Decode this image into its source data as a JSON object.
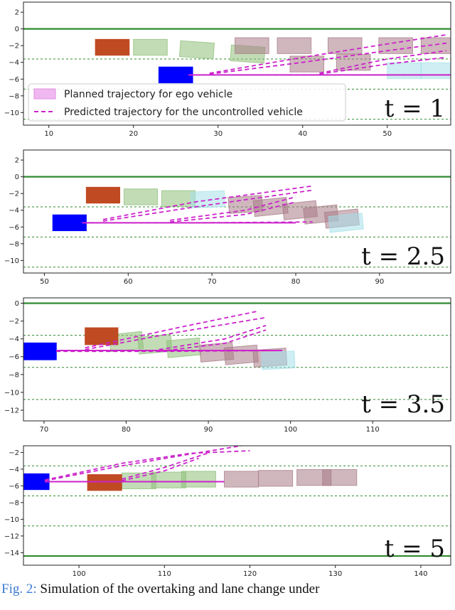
{
  "figure": {
    "legend": {
      "planned": "Planned trajectory for ego vehicle",
      "predicted": "Predicted trajectory for the uncontrolled vehicle"
    },
    "caption_label": "Fig. 2:",
    "caption_text": "Simulation of the overtaking and lane change under"
  },
  "colors": {
    "road": "#2e8b2e",
    "ego": "#0000ff",
    "other": "#c04a22",
    "traj": "#cc22cc",
    "green_box": "#8fbf7a",
    "mauve_box": "#a87b87"
  },
  "chart_data": [
    {
      "type": "scatter",
      "time_label": "t = 1",
      "xlim": [
        7,
        57.5
      ],
      "ylim": [
        -11.5,
        3.2
      ],
      "xticks": [
        10,
        20,
        30,
        40,
        50
      ],
      "yticks": [
        2,
        0,
        -2,
        -4,
        -6,
        -8,
        -10
      ],
      "solid_lines": [
        0
      ],
      "dashed_lines": [
        -3.6,
        -7.2,
        -10.8
      ],
      "ego": {
        "x": 25,
        "y": -5.5
      },
      "uncontrolled": {
        "x": 17.5,
        "y": -2.2
      },
      "predicted_boxes": [
        {
          "x": 22,
          "y": -2.2,
          "c": "green",
          "a": 0
        },
        {
          "x": 27.5,
          "y": -2.5,
          "c": "green",
          "a": 4
        },
        {
          "x": 33.5,
          "y": -3.0,
          "c": "green",
          "a": 4
        },
        {
          "x": 34,
          "y": -2.0,
          "c": "mauve",
          "a": 0
        },
        {
          "x": 39,
          "y": -2.0,
          "c": "mauve",
          "a": 0
        },
        {
          "x": 40.5,
          "y": -4.2,
          "c": "mauve",
          "a": 0
        },
        {
          "x": 45,
          "y": -2.0,
          "c": "mauve",
          "a": 0
        },
        {
          "x": 46,
          "y": -4.0,
          "c": "mauve",
          "a": 0
        },
        {
          "x": 51,
          "y": -2.0,
          "c": "mauve",
          "a": 0
        },
        {
          "x": 52,
          "y": -5.0,
          "c": "cyan",
          "a": 0
        },
        {
          "x": 56,
          "y": -2.0,
          "c": "mauve",
          "a": 0
        },
        {
          "x": 56,
          "y": -5.0,
          "c": "cyan",
          "a": 0
        }
      ],
      "planned": [
        {
          "x": [
            26.5,
            57.5
          ],
          "y": [
            -5.5,
            -5.5
          ]
        }
      ],
      "predicted": [
        {
          "x": [
            26.5,
            57.5
          ],
          "y": [
            -5.5,
            -5.5
          ]
        },
        {
          "x": [
            29,
            40,
            50,
            57
          ],
          "y": [
            -5.4,
            -4.0,
            -2.6,
            -1.7
          ]
        },
        {
          "x": [
            29,
            40,
            50,
            57
          ],
          "y": [
            -5.3,
            -3.4,
            -1.8,
            -0.7
          ]
        },
        {
          "x": [
            42,
            50,
            57
          ],
          "y": [
            -5.4,
            -4.2,
            -3.4
          ]
        },
        {
          "x": [
            42,
            50,
            57
          ],
          "y": [
            -5.3,
            -3.6,
            -2.6
          ]
        }
      ]
    },
    {
      "type": "scatter",
      "time_label": "t = 2.5",
      "xlim": [
        47.5,
        98.5
      ],
      "ylim": [
        -11.5,
        3.2
      ],
      "xticks": [
        50,
        60,
        70,
        80,
        90
      ],
      "yticks": [
        2,
        0,
        -2,
        -4,
        -6,
        -8,
        -10
      ],
      "solid_lines": [
        0
      ],
      "dashed_lines": [
        -3.6,
        -7.2,
        -10.8
      ],
      "ego": {
        "x": 53,
        "y": -5.5
      },
      "uncontrolled": {
        "x": 57,
        "y": -2.2
      },
      "predicted_boxes": [
        {
          "x": 61.5,
          "y": -2.4,
          "c": "green",
          "a": 0
        },
        {
          "x": 66,
          "y": -2.6,
          "c": "green",
          "a": 0
        },
        {
          "x": 69.5,
          "y": -2.7,
          "c": "cyan",
          "a": -2
        },
        {
          "x": 74,
          "y": -3.3,
          "c": "mauve",
          "a": -4
        },
        {
          "x": 77,
          "y": -3.6,
          "c": "mauve",
          "a": -6
        },
        {
          "x": 80.5,
          "y": -4.0,
          "c": "mauve",
          "a": -6
        },
        {
          "x": 83,
          "y": -4.5,
          "c": "mauve",
          "a": -6
        },
        {
          "x": 85.5,
          "y": -5.0,
          "c": "mauve",
          "a": -6
        },
        {
          "x": 86,
          "y": -5.5,
          "c": "cyan",
          "a": -6
        }
      ],
      "planned": [
        {
          "x": [
            54.5,
            80
          ],
          "y": [
            -5.5,
            -5.5
          ]
        }
      ],
      "predicted": [
        {
          "x": [
            54.5,
            68,
            82
          ],
          "y": [
            -5.5,
            -5.5,
            -5.4
          ]
        },
        {
          "x": [
            57,
            68,
            82
          ],
          "y": [
            -5.3,
            -3.6,
            -1.6
          ]
        },
        {
          "x": [
            57,
            68,
            82
          ],
          "y": [
            -5.1,
            -3.0,
            -1.1
          ]
        },
        {
          "x": [
            65,
            74,
            80
          ],
          "y": [
            -5.4,
            -4.5,
            -3.0
          ]
        },
        {
          "x": [
            65,
            74,
            80
          ],
          "y": [
            -5.2,
            -4.0,
            -2.4
          ]
        }
      ]
    },
    {
      "type": "scatter",
      "time_label": "t = 3.5",
      "xlim": [
        67.5,
        119.5
      ],
      "ylim": [
        -13.2,
        0.6
      ],
      "xticks": [
        70,
        80,
        90,
        100,
        110
      ],
      "yticks": [
        0,
        -2,
        -4,
        -6,
        -8,
        -10,
        -12
      ],
      "solid_lines": [
        0
      ],
      "dashed_lines": [
        -3.6,
        -7.2,
        -10.8
      ],
      "ego": {
        "x": 69.5,
        "y": -5.4
      },
      "uncontrolled": {
        "x": 77,
        "y": -3.7
      },
      "predicted_boxes": [
        {
          "x": 80,
          "y": -4.3,
          "c": "green",
          "a": -6
        },
        {
          "x": 83.5,
          "y": -4.6,
          "c": "green",
          "a": -5
        },
        {
          "x": 87,
          "y": -5.0,
          "c": "green",
          "a": -5
        },
        {
          "x": 91,
          "y": -5.5,
          "c": "mauve",
          "a": -5
        },
        {
          "x": 94,
          "y": -5.8,
          "c": "mauve",
          "a": -5
        },
        {
          "x": 97.5,
          "y": -6.1,
          "c": "mauve",
          "a": -4
        },
        {
          "x": 98.5,
          "y": -6.4,
          "c": "cyan",
          "a": -3
        }
      ],
      "planned": [
        {
          "x": [
            71.5,
            99
          ],
          "y": [
            -5.3,
            -5.3
          ]
        }
      ],
      "predicted": [
        {
          "x": [
            71.5,
            85,
            99
          ],
          "y": [
            -5.4,
            -5.4,
            -5.3
          ]
        },
        {
          "x": [
            75,
            86,
            97
          ],
          "y": [
            -5.2,
            -3.3,
            -1.6
          ]
        },
        {
          "x": [
            75,
            86,
            96
          ],
          "y": [
            -5.0,
            -2.8,
            -0.9
          ]
        },
        {
          "x": [
            84,
            92,
            97
          ],
          "y": [
            -5.4,
            -4.5,
            -3.0
          ]
        },
        {
          "x": [
            84,
            92,
            97
          ],
          "y": [
            -5.2,
            -4.0,
            -2.5
          ]
        }
      ]
    },
    {
      "type": "scatter",
      "time_label": "t = 5",
      "xlim": [
        93.5,
        143.5
      ],
      "ylim": [
        -15.5,
        -1.2
      ],
      "xticks": [
        100,
        110,
        120,
        130,
        140
      ],
      "yticks": [
        -2,
        -4,
        -6,
        -8,
        -10,
        -12,
        -14
      ],
      "solid_lines": [
        -14.4
      ],
      "dashed_lines": [
        -3.6,
        -7.2,
        -10.8
      ],
      "ego": {
        "x": 94.5,
        "y": -5.5
      },
      "uncontrolled": {
        "x": 103,
        "y": -5.6
      },
      "predicted_boxes": [
        {
          "x": 107,
          "y": -5.4,
          "c": "green",
          "a": 0
        },
        {
          "x": 110.5,
          "y": -5.3,
          "c": "green",
          "a": 0
        },
        {
          "x": 114,
          "y": -5.2,
          "c": "green",
          "a": 0
        },
        {
          "x": 119,
          "y": -5.2,
          "c": "mauve",
          "a": 0
        },
        {
          "x": 123,
          "y": -5.1,
          "c": "mauve",
          "a": 0
        },
        {
          "x": 127.5,
          "y": -5.0,
          "c": "mauve",
          "a": 0
        },
        {
          "x": 130.5,
          "y": -5.0,
          "c": "mauve",
          "a": 0
        }
      ],
      "planned": [
        {
          "x": [
            96,
            117
          ],
          "y": [
            -5.5,
            -5.5
          ]
        }
      ],
      "predicted": [
        {
          "x": [
            96,
            117
          ],
          "y": [
            -5.5,
            -5.5
          ]
        },
        {
          "x": [
            96,
            105,
            113,
            119
          ],
          "y": [
            -5.4,
            -3.6,
            -2.2,
            -1.2
          ]
        },
        {
          "x": [
            96,
            105,
            113,
            120
          ],
          "y": [
            -5.3,
            -3.3,
            -2.1,
            -1.8
          ]
        },
        {
          "x": [
            105,
            110,
            114
          ],
          "y": [
            -5.4,
            -4.2,
            -2.7
          ]
        },
        {
          "x": [
            105,
            110,
            115
          ],
          "y": [
            -5.2,
            -3.8,
            -2.1
          ]
        }
      ]
    }
  ]
}
